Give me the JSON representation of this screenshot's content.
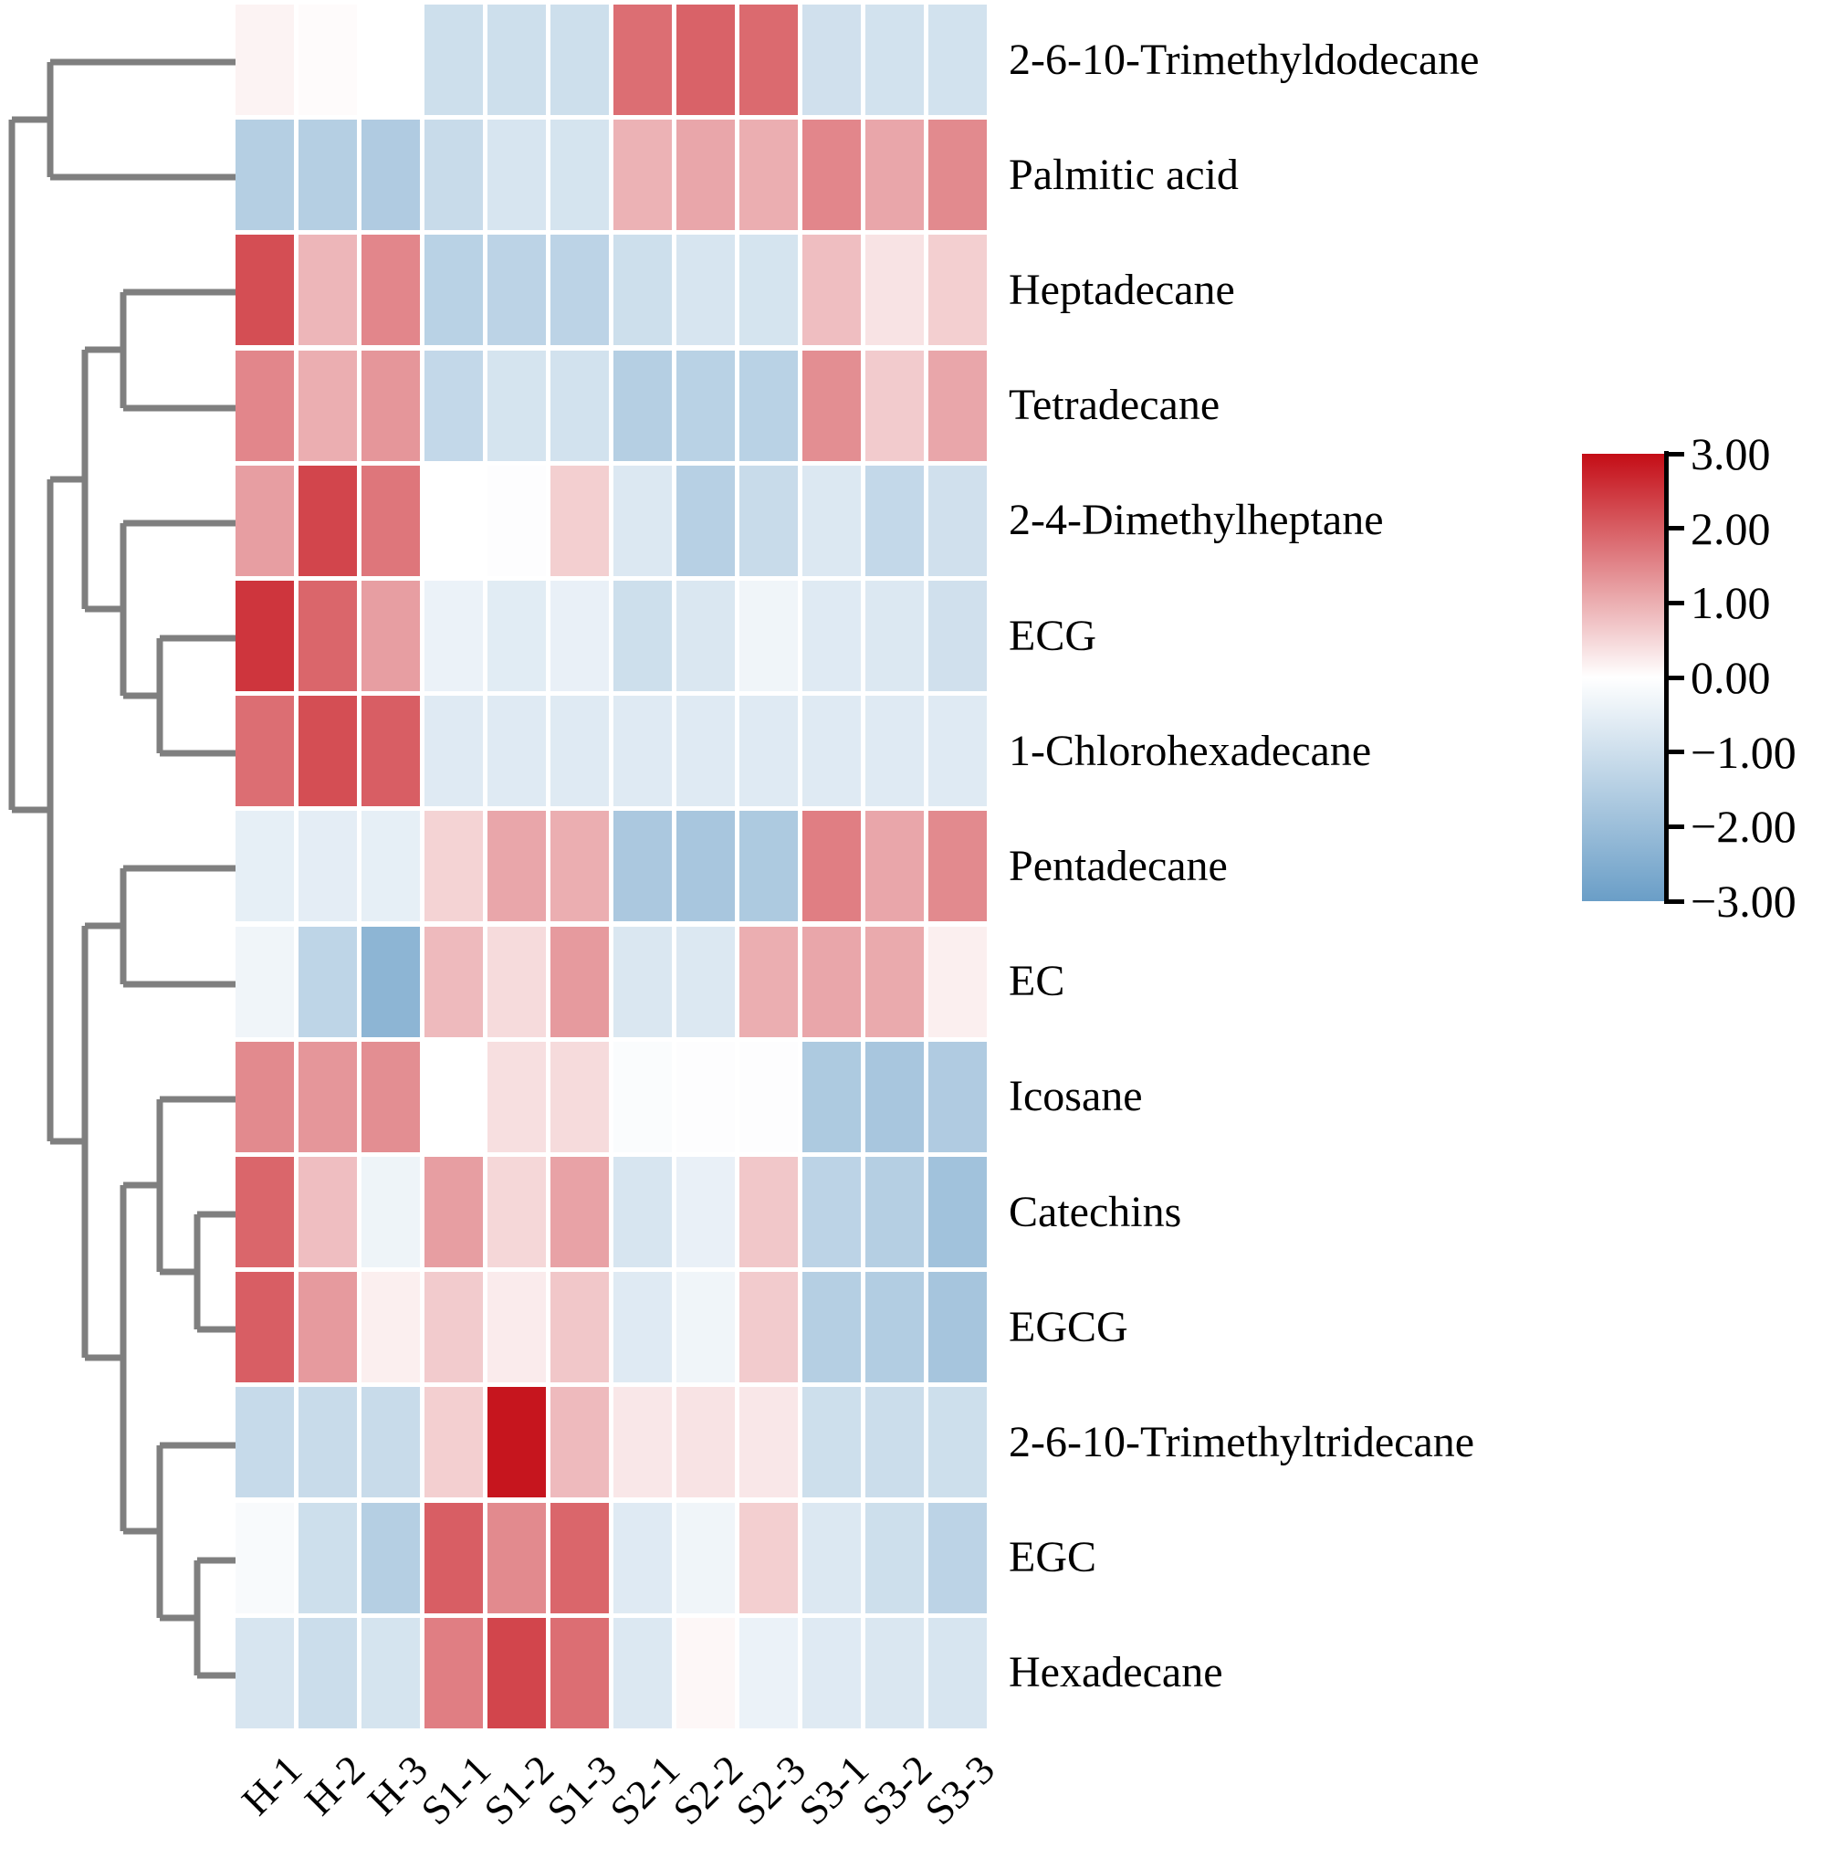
{
  "figure": {
    "background": "#ffffff"
  },
  "chart_data": {
    "type": "heatmap",
    "title": "",
    "columns": [
      "H-1",
      "H-2",
      "H-3",
      "S1-1",
      "S1-2",
      "S1-3",
      "S2-1",
      "S2-2",
      "S2-3",
      "S3-1",
      "S3-2",
      "S3-3"
    ],
    "rows": [
      "2-6-10-Trimethyldodecane",
      "Palmitic acid",
      "Heptadecane",
      "Tetradecane",
      "2-4-Dimethylheptane",
      "ECG",
      "1-Chlorohexadecane",
      "Pentadecane",
      "EC",
      "Icosane",
      "Catechins",
      "EGCG",
      "2-6-10-Trimethyltridecane",
      "EGC",
      "Hexadecane"
    ],
    "matrix": [
      [
        0.15,
        0.05,
        0.0,
        -1.0,
        -1.0,
        -1.0,
        1.8,
        1.95,
        1.85,
        -0.95,
        -0.9,
        -0.9
      ],
      [
        -1.5,
        -1.5,
        -1.6,
        -1.1,
        -0.8,
        -0.85,
        0.95,
        1.1,
        1.0,
        1.5,
        1.1,
        1.45
      ],
      [
        2.2,
        0.9,
        1.5,
        -1.4,
        -1.35,
        -1.35,
        -1.0,
        -0.8,
        -0.85,
        0.8,
        0.35,
        0.6
      ],
      [
        1.5,
        1.0,
        1.3,
        -1.2,
        -0.85,
        -0.9,
        -1.5,
        -1.4,
        -1.4,
        1.4,
        0.65,
        1.1
      ],
      [
        1.2,
        2.3,
        1.7,
        0.0,
        -0.05,
        0.6,
        -0.7,
        -1.45,
        -1.1,
        -0.7,
        -1.2,
        -0.95
      ],
      [
        2.5,
        1.9,
        1.2,
        -0.4,
        -0.6,
        -0.45,
        -1.0,
        -0.75,
        -0.3,
        -0.65,
        -0.7,
        -0.95
      ],
      [
        1.8,
        2.2,
        2.0,
        -0.65,
        -0.65,
        -0.65,
        -0.65,
        -0.65,
        -0.65,
        -0.65,
        -0.65,
        -0.65
      ],
      [
        -0.5,
        -0.55,
        -0.5,
        0.55,
        1.1,
        1.0,
        -1.7,
        -1.75,
        -1.65,
        1.6,
        1.1,
        1.45
      ],
      [
        -0.3,
        -1.3,
        -2.3,
        0.85,
        0.45,
        1.25,
        -0.75,
        -0.7,
        1.0,
        1.1,
        1.05,
        0.2
      ],
      [
        1.45,
        1.3,
        1.4,
        0.0,
        0.4,
        0.45,
        -0.1,
        -0.05,
        -0.05,
        -1.65,
        -1.75,
        -1.6
      ],
      [
        1.9,
        0.8,
        -0.35,
        1.2,
        0.5,
        1.15,
        -0.8,
        -0.45,
        0.7,
        -1.35,
        -1.5,
        -1.9
      ],
      [
        2.0,
        1.25,
        0.2,
        0.65,
        0.25,
        0.7,
        -0.65,
        -0.3,
        0.65,
        -1.5,
        -1.55,
        -1.8
      ],
      [
        -1.15,
        -1.1,
        -1.1,
        0.6,
        2.9,
        0.85,
        0.3,
        0.35,
        0.3,
        -1.0,
        -1.05,
        -1.0
      ],
      [
        -0.15,
        -1.0,
        -1.5,
        2.0,
        1.45,
        1.9,
        -0.65,
        -0.3,
        0.6,
        -0.7,
        -1.0,
        -1.35
      ],
      [
        -0.8,
        -1.05,
        -0.85,
        1.6,
        2.3,
        1.8,
        -0.7,
        0.1,
        -0.4,
        -0.65,
        -0.75,
        -0.8
      ]
    ],
    "value_range": [
      -3,
      3
    ],
    "colormap": {
      "negative": "#6a9ec7",
      "zero": "#ffffff",
      "positive": "#c40d16"
    },
    "colorbar": {
      "position": "right",
      "tick_labels": [
        "3.00",
        "2.00",
        "1.00",
        "0.00",
        "−1.00",
        "−2.00",
        "−3.00"
      ],
      "tick_values": [
        3,
        2,
        1,
        0,
        -1,
        -2,
        -3
      ]
    },
    "dendrogram": {
      "color": "#7f7f7f",
      "segments": [
        [
          13,
          131,
          13,
          887
        ],
        [
          13,
          131,
          55,
          131
        ],
        [
          13,
          887,
          55,
          887
        ],
        [
          55,
          68,
          55,
          194
        ],
        [
          55,
          68,
          258,
          68
        ],
        [
          55,
          194,
          258,
          194
        ],
        [
          55,
          525,
          55,
          1250
        ],
        [
          55,
          525,
          93,
          525
        ],
        [
          55,
          1250,
          93,
          1250
        ],
        [
          93,
          383,
          93,
          667
        ],
        [
          93,
          383,
          135,
          383
        ],
        [
          93,
          667,
          135,
          667
        ],
        [
          93,
          1014,
          93,
          1487
        ],
        [
          93,
          1014,
          135,
          1014
        ],
        [
          93,
          1487,
          135,
          1487
        ],
        [
          135,
          320,
          135,
          447
        ],
        [
          135,
          320,
          258,
          320
        ],
        [
          135,
          447,
          258,
          447
        ],
        [
          135,
          573,
          135,
          762
        ],
        [
          135,
          573,
          258,
          573
        ],
        [
          135,
          762,
          175,
          762
        ],
        [
          135,
          951,
          135,
          1078
        ],
        [
          135,
          951,
          258,
          951
        ],
        [
          135,
          1078,
          258,
          1078
        ],
        [
          135,
          1298,
          135,
          1677
        ],
        [
          135,
          1298,
          175,
          1298
        ],
        [
          135,
          1677,
          175,
          1677
        ],
        [
          175,
          699,
          175,
          825
        ],
        [
          175,
          699,
          258,
          699
        ],
        [
          175,
          825,
          258,
          825
        ],
        [
          175,
          1204,
          175,
          1393
        ],
        [
          175,
          1204,
          258,
          1204
        ],
        [
          175,
          1393,
          216,
          1393
        ],
        [
          175,
          1583,
          175,
          1772
        ],
        [
          175,
          1583,
          258,
          1583
        ],
        [
          175,
          1772,
          216,
          1772
        ],
        [
          216,
          1330,
          216,
          1456
        ],
        [
          216,
          1330,
          258,
          1330
        ],
        [
          216,
          1456,
          258,
          1456
        ],
        [
          216,
          1709,
          216,
          1835
        ],
        [
          216,
          1709,
          258,
          1709
        ],
        [
          216,
          1835,
          258,
          1835
        ]
      ]
    }
  }
}
